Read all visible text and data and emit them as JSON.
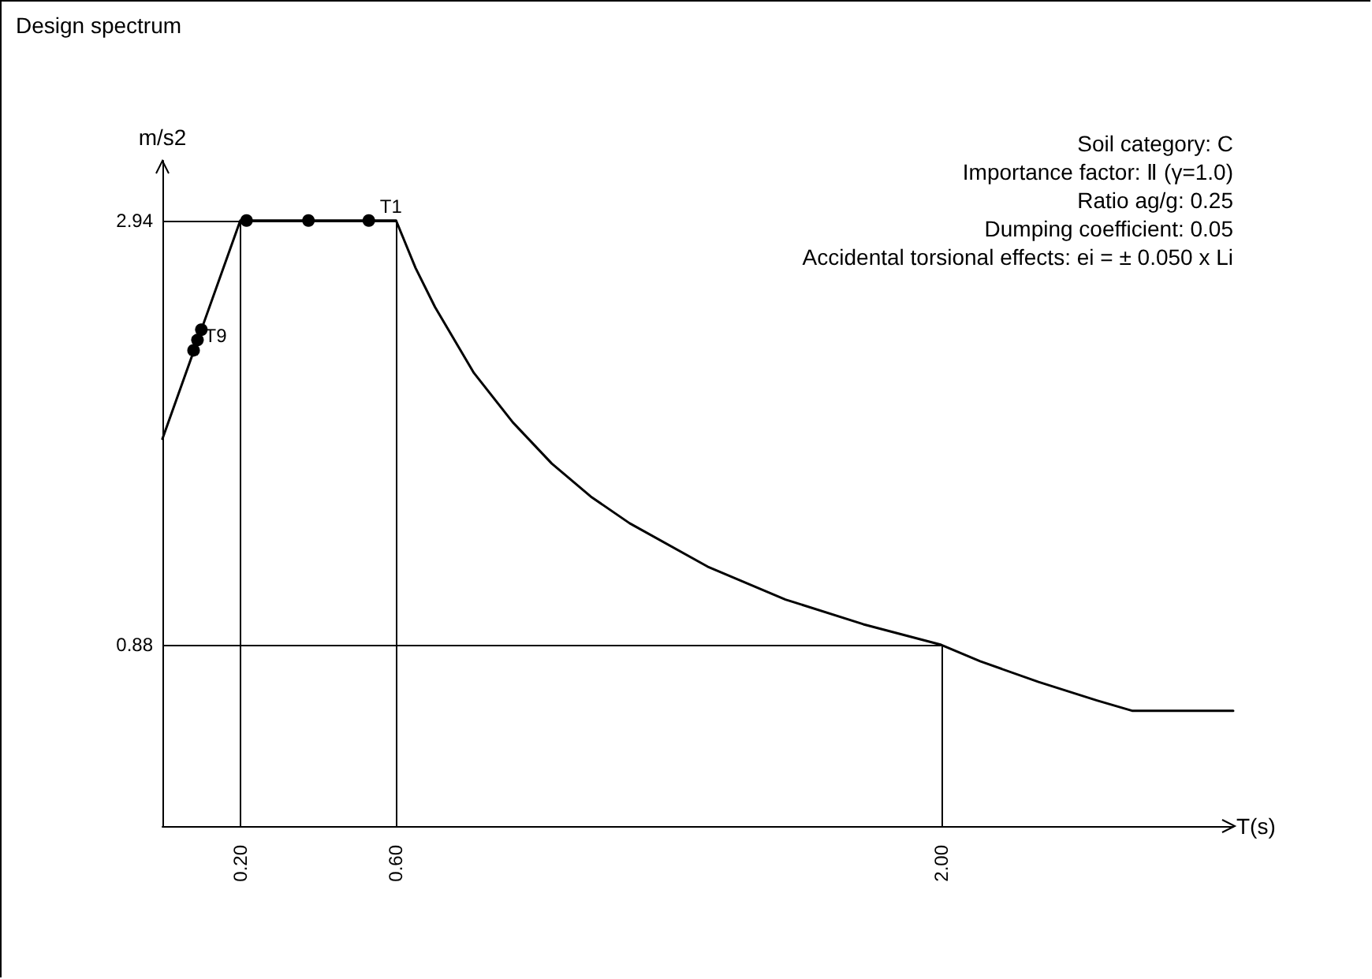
{
  "chart_data": {
    "type": "line",
    "title": "Design spectrum",
    "xlabel": "T(s)",
    "ylabel": "m/s2",
    "xlim": [
      0,
      2.75
    ],
    "ylim": [
      0,
      3.23
    ],
    "xticks": [
      {
        "value": 0.2,
        "label": "0.20"
      },
      {
        "value": 0.6,
        "label": "0.60"
      },
      {
        "value": 2.0,
        "label": "2.00"
      }
    ],
    "yticks": [
      2.94,
      0.88
    ],
    "grid": false,
    "series": [
      {
        "color": "#000000",
        "marker": "none",
        "x": [
          0,
          0.2,
          0.6,
          0.65,
          0.7,
          0.8,
          0.9,
          1.0,
          1.1,
          1.2,
          1.4,
          1.6,
          1.8,
          2.0,
          2.1,
          2.25,
          2.4,
          2.49,
          2.75
        ],
        "values": [
          1.88,
          2.94,
          2.94,
          2.71,
          2.52,
          2.2,
          1.96,
          1.76,
          1.6,
          1.47,
          1.26,
          1.1,
          0.98,
          0.88,
          0.8,
          0.7,
          0.61,
          0.56,
          0.56
        ]
      },
      {
        "type": "scatter",
        "color": "#000000",
        "marker": "circle",
        "x": [
          0.53,
          0.375,
          0.216,
          0.1,
          0.09,
          0.08
        ],
        "values": [
          2.94,
          2.94,
          2.94,
          2.41,
          2.36,
          2.31
        ]
      }
    ],
    "ref_lines": [
      {
        "axis": "x",
        "value": 0.2
      },
      {
        "axis": "x",
        "value": 0.6
      },
      {
        "axis": "x",
        "value": 2.0
      },
      {
        "axis": "y",
        "value": 2.94
      },
      {
        "axis": "y",
        "value": 0.88
      }
    ],
    "annotations": [
      {
        "text": "T1",
        "x": 0.53,
        "y": 2.94
      },
      {
        "text": "T9",
        "x": 0.08,
        "y": 2.31
      },
      "Soil category: C",
      "Importance factor: Ⅱ (γ=1.0)",
      "Ratio ag/g: 0.25",
      "Dumping coefficient: 0.05",
      "Accidental torsional effects: ei = ± 0.050 x Li"
    ]
  }
}
